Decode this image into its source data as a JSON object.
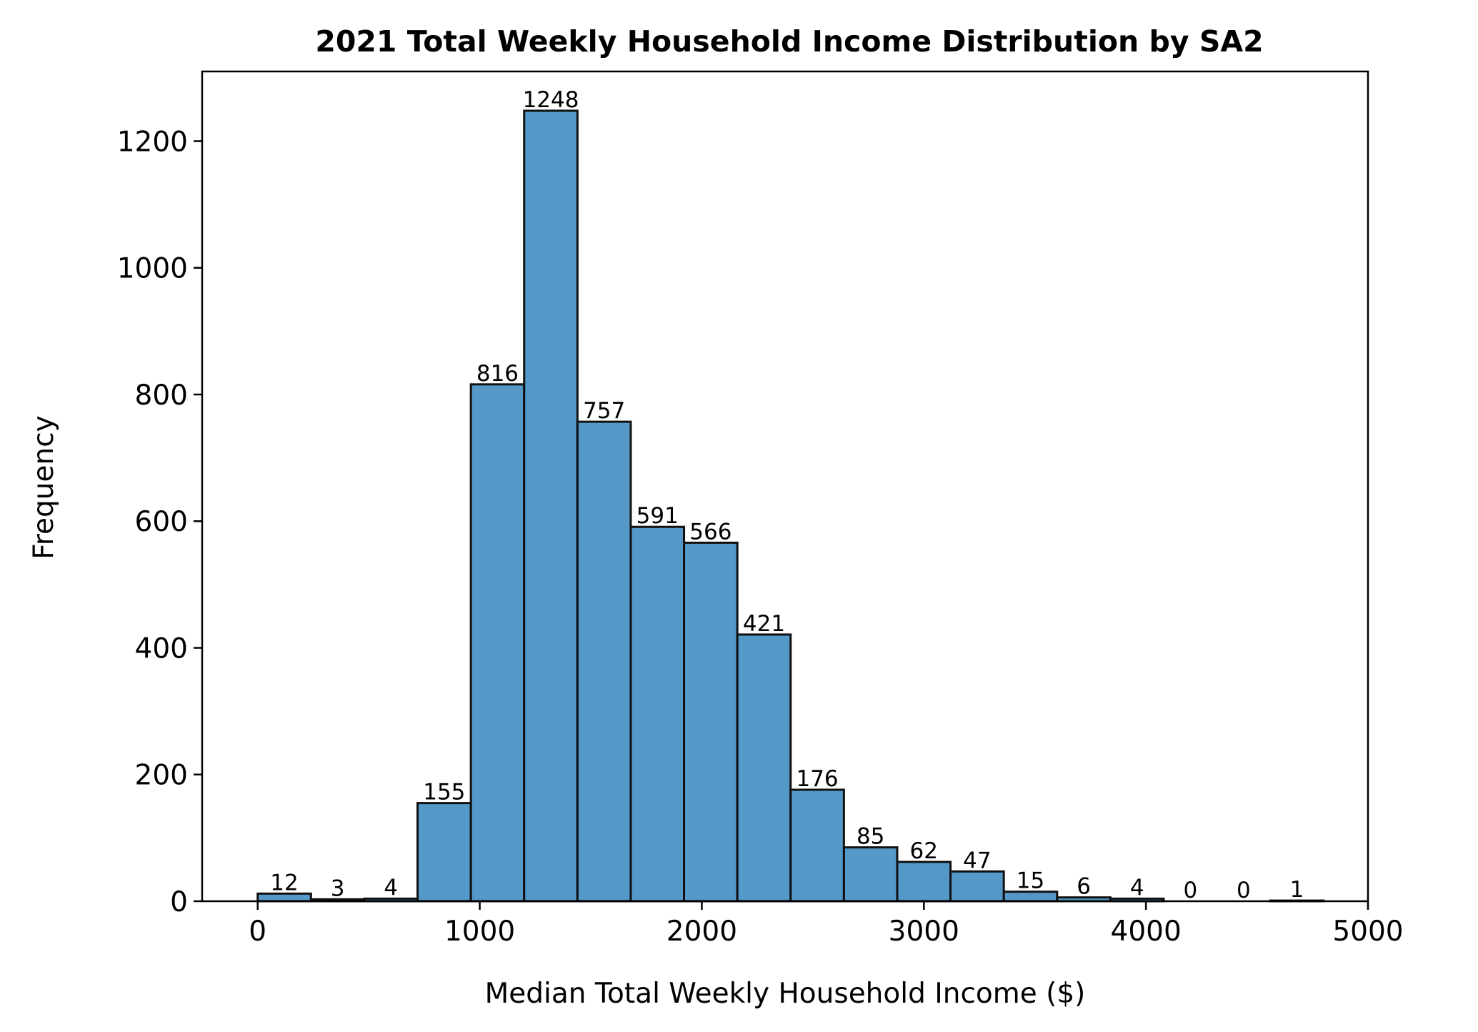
{
  "chart_data": {
    "type": "bar",
    "title": "2021 Total Weekly Household Income Distribution by SA2",
    "xlabel": "Median Total Weekly Household Income ($)",
    "ylabel": "Frequency",
    "xlim": [
      -250,
      5000
    ],
    "ylim": [
      0,
      1310
    ],
    "x_ticks": [
      0,
      1000,
      2000,
      3000,
      4000,
      5000
    ],
    "y_ticks": [
      0,
      200,
      400,
      600,
      800,
      1000,
      1200
    ],
    "grid": false,
    "legend": "none",
    "bar_color": "#5499c7",
    "bin_edges": [
      0,
      240,
      480,
      720,
      960,
      1200,
      1440,
      1680,
      1920,
      2160,
      2400,
      2640,
      2880,
      3120,
      3360,
      3600,
      3840,
      4080,
      4320,
      4560,
      4800
    ],
    "values": [
      12,
      3,
      4,
      155,
      816,
      1248,
      757,
      591,
      566,
      421,
      176,
      85,
      62,
      47,
      15,
      6,
      4,
      0,
      0,
      1
    ],
    "value_labels": [
      "12",
      "3",
      "4",
      "155",
      "816",
      "1248",
      "757",
      "591",
      "566",
      "421",
      "176",
      "85",
      "62",
      "47",
      "15",
      "6",
      "4",
      "0",
      "0",
      "1"
    ]
  }
}
